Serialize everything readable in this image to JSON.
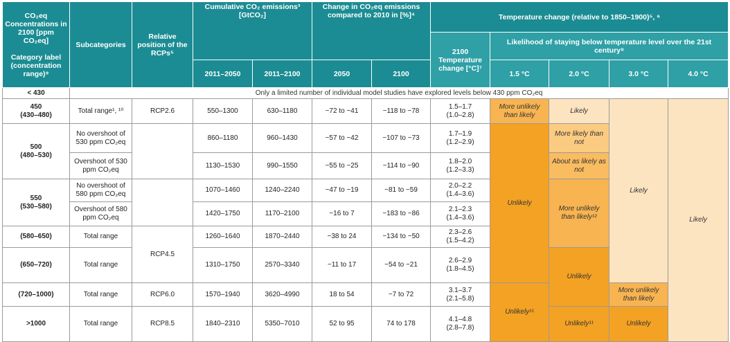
{
  "header": {
    "concentration": "CO₂eq Concentrations in 2100 [ppm CO₂eq]",
    "category_label": "Category label (concentration range)⁹",
    "subcategories": "Subcategories",
    "rcp": "Relative position of the RCPs⁵",
    "cumulative": "Cumulative CO₂ emissions³ [GtCO₂]",
    "cum_periods": [
      "2011–2050",
      "2011–2100"
    ],
    "change": "Change in CO₂eq emissions compared to 2010 in [%]⁴",
    "change_years": [
      "2050",
      "2100"
    ],
    "temperature": "Temperature change (relative to 1850–1900)⁵, ⁶",
    "temp_2100": "2100 Temperature change [°C]⁷",
    "likelihood": "Likelihood of staying below temperature level over the 21st century⁸",
    "levels": [
      "1.5 °C",
      "2.0 °C",
      "3.0 °C",
      "4.0 °C"
    ]
  },
  "below_430": {
    "label": "< 430",
    "note": "Only a limited number of individual model studies have explored levels below 430 ppm CO₂eq"
  },
  "categories": [
    {
      "value": "450",
      "range": "(430–480)"
    },
    {
      "value": "500",
      "range": "(480–530)"
    },
    {
      "value": "550",
      "range": "(530–580)"
    },
    {
      "range": "(580–650)"
    },
    {
      "range": "(650–720)"
    },
    {
      "range": "(720–1000)"
    },
    {
      "range": ">1000"
    }
  ],
  "rcps": [
    "RCP2.6",
    "RCP4.5",
    "RCP6.0",
    "RCP8.5"
  ],
  "rows": [
    [
      "Total range¹, ¹⁰",
      "550–1300",
      "630–1180",
      "−72 to −41",
      "−118 to −78",
      "1.5–1.7",
      "(1.0–2.8)"
    ],
    [
      "No overshoot of 530 ppm CO₂eq",
      "860–1180",
      "960–1430",
      "−57 to −42",
      "−107 to −73",
      "1.7–1.9",
      "(1.2–2.9)"
    ],
    [
      "Overshoot of 530 ppm CO₂eq",
      "1130–1530",
      "990–1550",
      "−55 to −25",
      "−114 to −90",
      "1.8–2.0",
      "(1.2–3.3)"
    ],
    [
      "No overshoot of 580 ppm CO₂eq",
      "1070–1460",
      "1240–2240",
      "−47 to −19",
      "−81 to −59",
      "2.0–2.2",
      "(1.4–3.6)"
    ],
    [
      "Overshoot of 580 ppm CO₂eq",
      "1420–1750",
      "1170–2100",
      "−16 to 7",
      "−183 to −86",
      "2.1–2.3",
      "(1.4–3.6)"
    ],
    [
      "Total range",
      "1260–1640",
      "1870–2440",
      "−38 to 24",
      "−134 to −50",
      "2.3–2.6",
      "(1.5–4.2)"
    ],
    [
      "Total range",
      "1310–1750",
      "2570–3340",
      "−11 to 17",
      "−54 to −21",
      "2.6–2.9",
      "(1.8–4.5)"
    ],
    [
      "Total range",
      "1570–1940",
      "3620–4990",
      "18 to 54",
      "−7 to 72",
      "3.1–3.7",
      "(2.1–5.8)"
    ],
    [
      "Total range",
      "1840–2310",
      "5350–7010",
      "52 to 95",
      "74 to 178",
      "4.1–4.8",
      "(2.8–7.8)"
    ]
  ],
  "likelihood_cells": [
    [
      "More unlikely than likely",
      "Unlikely",
      "Unlikely¹¹"
    ],
    [
      "Likely",
      "More likely than not",
      "About as likely as not",
      "More unlikely than likely¹²",
      "Unlikely",
      "Unlikely¹¹"
    ],
    [
      "Likely",
      "More likely than not",
      "More unlikely than likely",
      "Unlikely"
    ],
    [
      "Likely",
      "More unlikely than likely"
    ]
  ]
}
